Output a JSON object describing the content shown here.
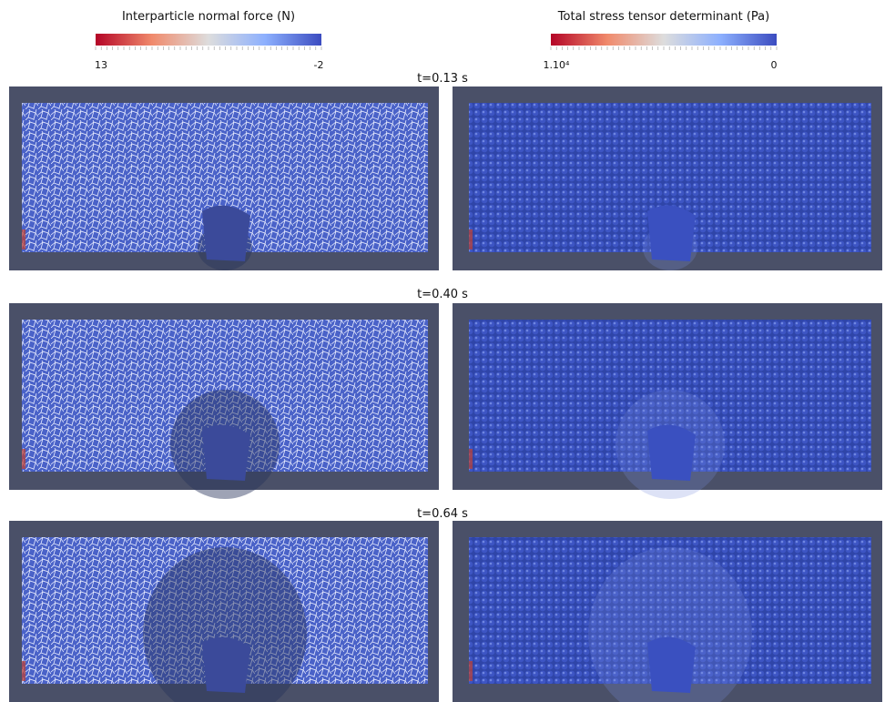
{
  "colorbars": [
    {
      "title": "Interparticle normal force (N)",
      "min_label": "13",
      "max_label": "-2"
    },
    {
      "title": "Total stress tensor determinant (Pa)",
      "min_label": "1.10⁴",
      "max_label": "0"
    }
  ],
  "rows": [
    {
      "time": "t=0.13 s"
    },
    {
      "time": "t=0.40 s"
    },
    {
      "time": "t=0.64 s"
    }
  ]
}
